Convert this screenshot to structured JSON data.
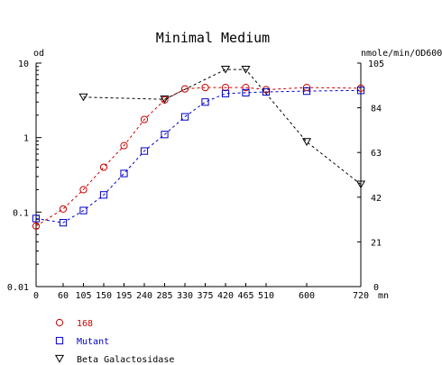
{
  "chart_data": {
    "type": "line",
    "title": "Minimal Medium",
    "x_unit": "mn",
    "y_left_unit": "od",
    "y_right_unit": "nmole/min/OD600",
    "x_ticks": [
      0,
      60,
      105,
      150,
      195,
      240,
      285,
      330,
      375,
      420,
      465,
      510,
      600,
      720
    ],
    "xlim": [
      0,
      720
    ],
    "y_left_scale": "log",
    "y_left_ticks": [
      "0.01",
      "0.1",
      "1",
      "10"
    ],
    "y_left_lim": [
      0.01,
      10
    ],
    "y_right_ticks": [
      0,
      21,
      42,
      63,
      84,
      105
    ],
    "y_right_lim": [
      0,
      105
    ],
    "grid": false,
    "legend_position": "bottom-left",
    "series": [
      {
        "name": "168",
        "axis": "left",
        "color": "#cc0000",
        "marker": "circle",
        "x": [
          0,
          60,
          105,
          150,
          195,
          240,
          285,
          330,
          375,
          420,
          465,
          510,
          600,
          720
        ],
        "y": [
          0.065,
          0.11,
          0.2,
          0.4,
          0.78,
          1.75,
          3.2,
          4.5,
          4.7,
          4.7,
          4.7,
          4.4,
          4.7,
          4.6
        ]
      },
      {
        "name": "Mutant",
        "axis": "left",
        "color": "#0000cc",
        "marker": "square",
        "x": [
          0,
          60,
          105,
          150,
          195,
          240,
          285,
          330,
          375,
          420,
          465,
          510,
          600,
          720
        ],
        "y": [
          0.082,
          0.072,
          0.105,
          0.17,
          0.33,
          0.66,
          1.1,
          1.9,
          3.0,
          3.9,
          4.0,
          4.1,
          4.2,
          4.3
        ]
      },
      {
        "name": "Beta Galactosidase",
        "axis": "right",
        "color": "#000000",
        "marker": "triangle-down",
        "x": [
          105,
          285,
          420,
          465,
          600,
          720
        ],
        "y": [
          89,
          88,
          102,
          102,
          68,
          48
        ]
      }
    ]
  }
}
